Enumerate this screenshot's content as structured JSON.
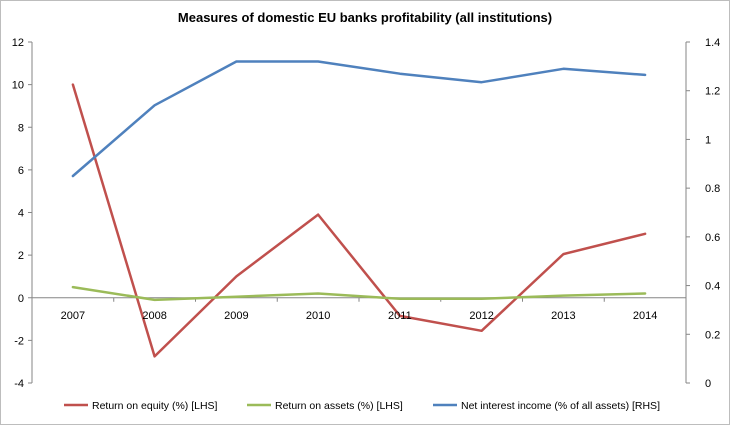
{
  "chart_data": {
    "type": "line",
    "title": "Measures of domestic EU banks profitability (all institutions)",
    "categories": [
      "2007",
      "2008",
      "2009",
      "2010",
      "2011",
      "2012",
      "2013",
      "2014"
    ],
    "left_axis": {
      "min": -4,
      "max": 12,
      "step": 2,
      "ticks": [
        "-4",
        "-2",
        "0",
        "2",
        "4",
        "6",
        "8",
        "10",
        "12"
      ]
    },
    "right_axis": {
      "min": 0,
      "max": 1.4,
      "step": 0.2,
      "ticks": [
        "0",
        "0.2",
        "0.4",
        "0.6",
        "0.8",
        "1",
        "1.2",
        "1.4"
      ]
    },
    "series": [
      {
        "name": "Return on equity (%) [LHS]",
        "axis": "left",
        "color": "#c0504d",
        "values": [
          10.0,
          -2.75,
          1.0,
          3.9,
          -0.85,
          -1.55,
          2.05,
          3.0
        ]
      },
      {
        "name": "Return on assets (%) [LHS]",
        "axis": "left",
        "color": "#9bbb59",
        "values": [
          0.5,
          -0.1,
          0.05,
          0.2,
          -0.05,
          -0.05,
          0.1,
          0.2
        ]
      },
      {
        "name": "Net interest income (% of all assets) [RHS]",
        "axis": "right",
        "color": "#4f81bd",
        "values": [
          0.85,
          1.14,
          1.32,
          1.32,
          1.27,
          1.235,
          1.29,
          1.265
        ]
      }
    ],
    "legend_position": "bottom",
    "grid": false
  }
}
